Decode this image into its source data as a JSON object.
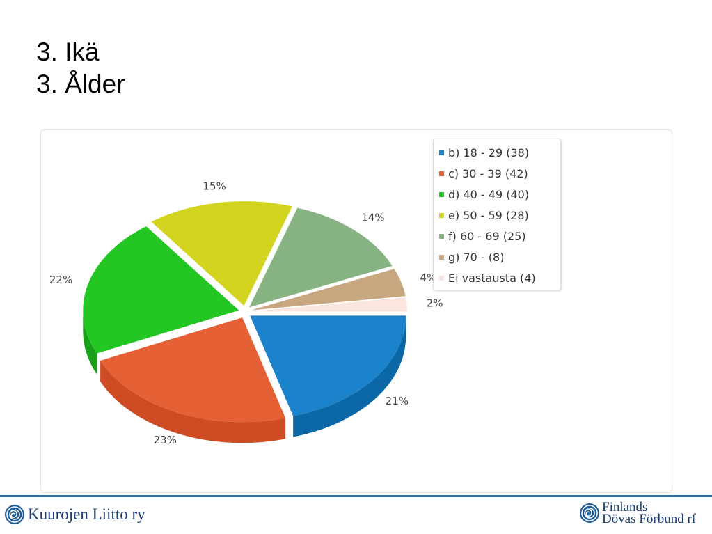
{
  "slide": {
    "title_fi": "3. Ikä",
    "title_sv": "3. Ålder"
  },
  "chart_data": {
    "type": "pie",
    "categories": [
      "b) 18 - 29 (38)",
      "c) 30 - 39 (42)",
      "d) 40 - 49 (40)",
      "e) 50 - 59 (28)",
      "f) 60 - 69 (25)",
      "g) 70 - (8)",
      "Ei vastausta (4)"
    ],
    "values": [
      38,
      42,
      40,
      28,
      25,
      8,
      4
    ],
    "percent_labels": [
      "21%",
      "23%",
      "22%",
      "15%",
      "14%",
      "4%",
      "2%"
    ],
    "colors": [
      "#1b82cc",
      "#e66035",
      "#23c623",
      "#d2d41f",
      "#87b383",
      "#c8a680",
      "#fbe5df"
    ],
    "side_colors": [
      "#0b67a6",
      "#cd4c23",
      "#17a017",
      "#b1b410",
      "#6e9a6b",
      "#ad8b66",
      "#ebcdc6"
    ],
    "legend_position": "right",
    "exploded": true,
    "three_d": true
  },
  "footer": {
    "left_logo_text": "Kuurojen Liitto ry",
    "right_logo_line1": "Finlands",
    "right_logo_line2": "Dövas Förbund rf",
    "logo_icon": "spiral-icon",
    "rule_color": "#1e73b0",
    "logo_color": "#1c3e6e"
  }
}
